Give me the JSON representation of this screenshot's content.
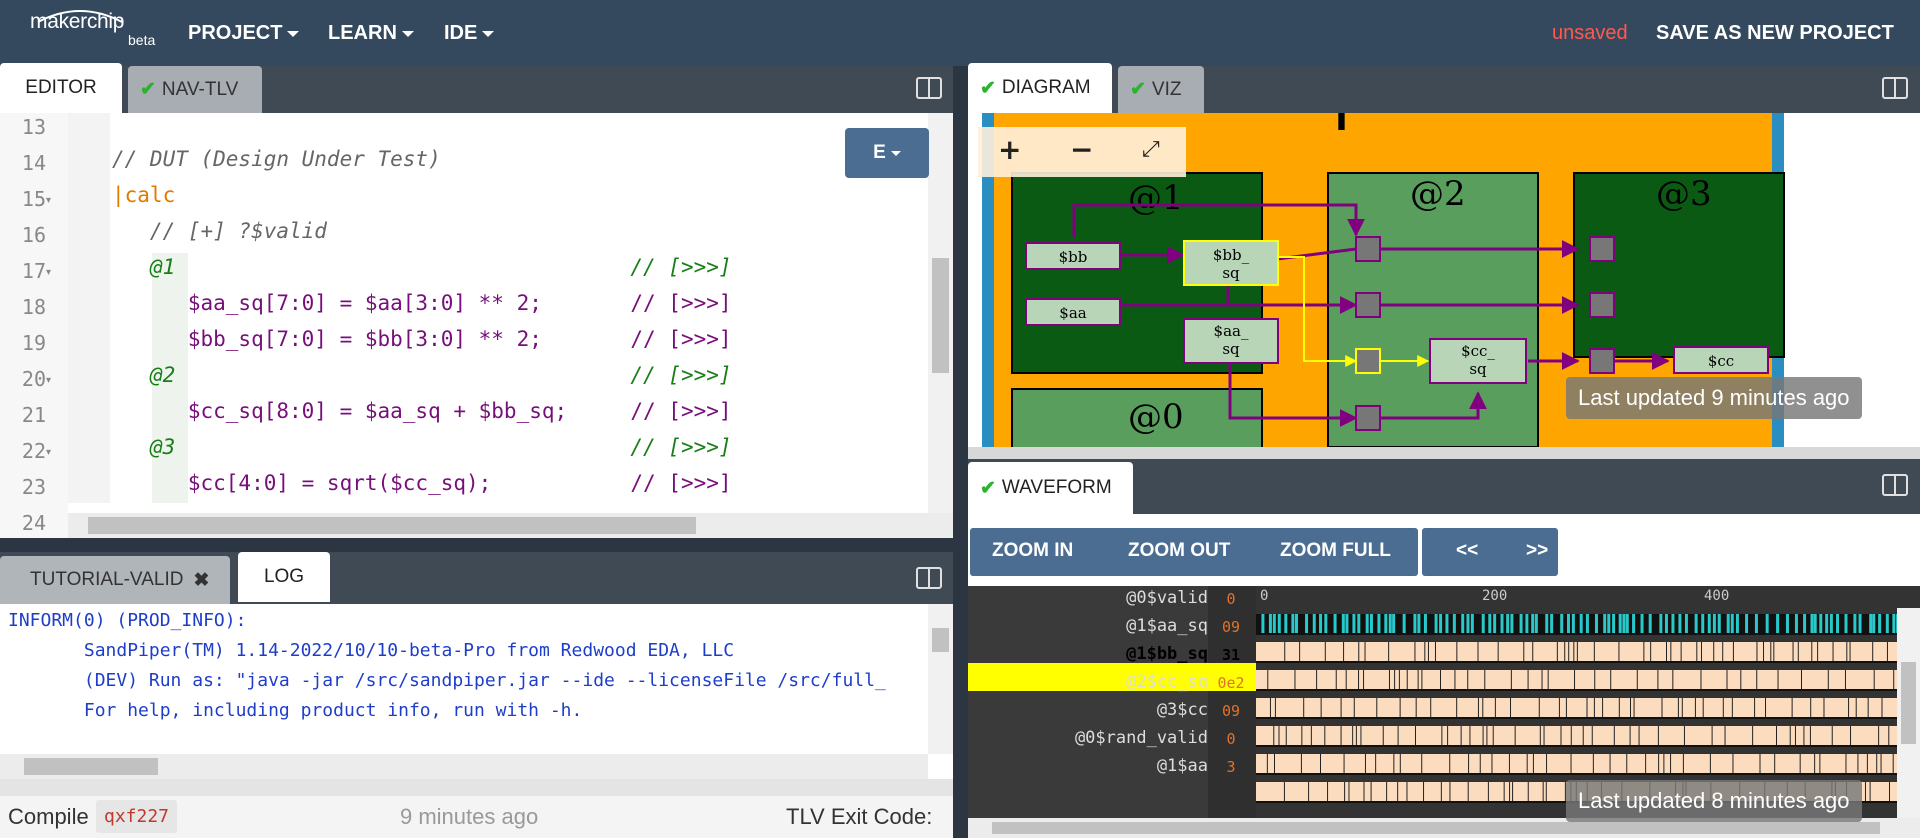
{
  "app": {
    "logo_text": "makerchip",
    "beta": "beta",
    "unsaved": "unsaved",
    "save_as": "SAVE AS NEW PROJECT"
  },
  "menu": {
    "project": "PROJECT",
    "learn": "LEARN",
    "ide": "IDE"
  },
  "left_tabs": {
    "editor": "EDITOR",
    "nav_tlv": "NAV-TLV"
  },
  "right_tabs": {
    "diagram": "DIAGRAM",
    "viz": "VIZ",
    "waveform": "WAVEFORM"
  },
  "editor": {
    "mode_button": "E",
    "line_numbers": [
      "13",
      "14",
      "15",
      "16",
      "17",
      "18",
      "19",
      "20",
      "21",
      "22",
      "23",
      "24"
    ],
    "lines": [
      "",
      "// DUT (Design Under Test)",
      "|calc",
      "   // [+] ?$valid",
      "   @1                                    // [>>>]",
      "      $aa_sq[7:0] = $aa[3:0] ** 2;       // [>>>]",
      "      $bb_sq[7:0] = $bb[3:0] ** 2;       // [>>>]",
      "   @2                                    // [>>>]",
      "      $cc_sq[8:0] = $aa_sq + $bb_sq;     // [>>>]",
      "   @3                                    // [>>>]",
      "      $cc[4:0] = sqrt($cc_sq);           // [>>>]",
      ""
    ]
  },
  "bottom_tabs": {
    "tutorial": "TUTORIAL-VALID",
    "log": "LOG"
  },
  "log": {
    "lines": [
      "INFORM(0) (PROD_INFO):",
      "       SandPiper(TM) 1.14-2022/10/10-beta-Pro from Redwood EDA, LLC",
      "       (DEV) Run as: \"java -jar /src/sandpiper.jar --ide --licenseFile /src/full_",
      "       For help, including product info, run with -h."
    ]
  },
  "status": {
    "compile": "Compile",
    "compile_id": "qxf227",
    "time": "9 minutes ago",
    "exit_code": "TLV Exit Code:"
  },
  "diagram": {
    "title": "|calc",
    "stages": [
      "@1",
      "@2",
      "@3",
      "@0"
    ],
    "nodes": {
      "bb": "$bb",
      "aa": "$aa",
      "bb_sq": "$bb_\nsq",
      "aa_sq": "$aa_\nsq",
      "cc_sq": "$cc_\nsq",
      "cc": "$cc"
    },
    "zoom_in": "+",
    "zoom_out": "−",
    "updated": "Last updated 9 minutes ago"
  },
  "waveform": {
    "zoom_in": "ZOOM IN",
    "zoom_out": "ZOOM OUT",
    "zoom_full": "ZOOM FULL",
    "prev": "<<",
    "next": ">>",
    "ticks": [
      "0",
      "200",
      "400"
    ],
    "signals": [
      {
        "name": "@0$valid",
        "value": "0"
      },
      {
        "name": "@1$aa_sq",
        "value": "09"
      },
      {
        "name": "@1$bb_sq",
        "value": "31"
      },
      {
        "name": "@2$cc_sq",
        "value": "0e2"
      },
      {
        "name": "@3$cc",
        "value": "09"
      },
      {
        "name": "@0$rand_valid",
        "value": "0"
      },
      {
        "name": "@1$aa",
        "value": "3"
      }
    ],
    "updated": "Last updated 8 minutes ago"
  },
  "colors": {
    "topbar": "#34495e",
    "unsaved": "#ff5a4f",
    "diagram_bg": "#ffa500",
    "stage_green": "#0b5a14",
    "wave_fill": "#fcdcbe",
    "highlight": "#ffff00"
  }
}
